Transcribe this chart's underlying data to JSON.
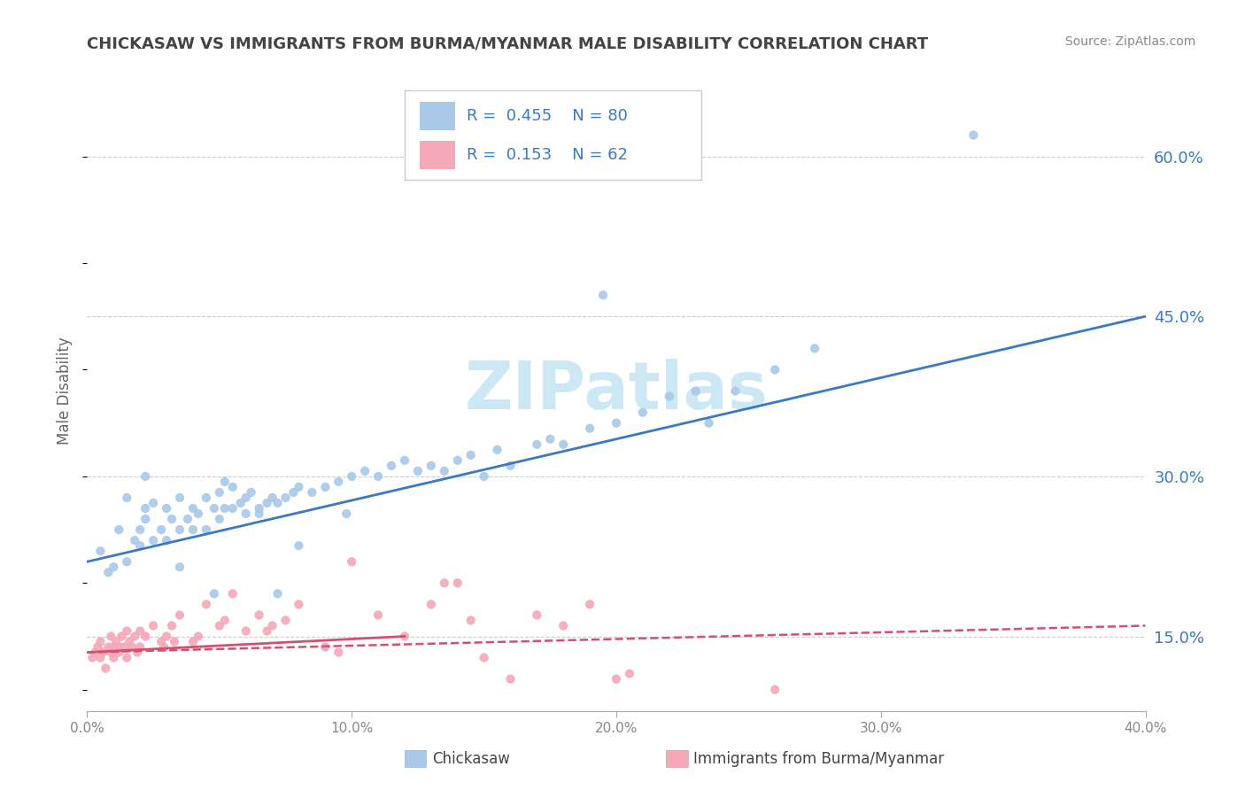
{
  "title": "CHICKASAW VS IMMIGRANTS FROM BURMA/MYANMAR MALE DISABILITY CORRELATION CHART",
  "source": "Source: ZipAtlas.com",
  "ylabel": "Male Disability",
  "xlabel_chickasaw": "Chickasaw",
  "xlabel_burma": "Immigrants from Burma/Myanmar",
  "xlim": [
    0.0,
    40.0
  ],
  "ylim": [
    8.0,
    68.0
  ],
  "right_yticks": [
    15.0,
    30.0,
    45.0,
    60.0
  ],
  "R_blue": 0.455,
  "N_blue": 80,
  "R_pink": 0.153,
  "N_pink": 62,
  "blue_color": "#a8c8e8",
  "pink_color": "#f4a8b8",
  "blue_line_color": "#3a7abf",
  "pink_line_color": "#d45070",
  "watermark": "ZIPatlas",
  "watermark_color": "#cde8f5",
  "background_color": "#ffffff",
  "grid_color": "#cccccc",
  "title_color": "#444444",
  "source_color": "#888888",
  "axis_label_color": "#666666",
  "tick_color": "#888888",
  "legend_label_color": "#3a7abf",
  "blue_scatter_x": [
    0.5,
    0.8,
    1.0,
    1.2,
    1.5,
    1.5,
    1.8,
    2.0,
    2.0,
    2.2,
    2.2,
    2.5,
    2.5,
    2.8,
    3.0,
    3.0,
    3.2,
    3.5,
    3.5,
    3.8,
    4.0,
    4.0,
    4.2,
    4.5,
    4.5,
    4.8,
    5.0,
    5.0,
    5.2,
    5.5,
    5.5,
    5.8,
    6.0,
    6.0,
    6.2,
    6.5,
    6.8,
    7.0,
    7.2,
    7.5,
    7.8,
    8.0,
    8.5,
    9.0,
    9.5,
    10.0,
    10.5,
    11.0,
    11.5,
    12.0,
    12.5,
    13.0,
    13.5,
    14.0,
    14.5,
    15.0,
    15.5,
    16.0,
    17.0,
    17.5,
    18.0,
    19.0,
    20.0,
    21.0,
    22.0,
    23.0,
    23.5,
    24.5,
    26.0,
    27.5,
    8.0,
    3.5,
    4.8,
    6.5,
    5.2,
    9.8,
    2.2,
    7.2,
    19.5,
    33.5
  ],
  "blue_scatter_y": [
    23.0,
    21.0,
    21.5,
    25.0,
    22.0,
    28.0,
    24.0,
    25.0,
    23.5,
    27.0,
    26.0,
    24.0,
    27.5,
    25.0,
    24.0,
    27.0,
    26.0,
    25.0,
    28.0,
    26.0,
    25.0,
    27.0,
    26.5,
    25.0,
    28.0,
    27.0,
    26.0,
    28.5,
    27.0,
    27.0,
    29.0,
    27.5,
    28.0,
    26.5,
    28.5,
    27.0,
    27.5,
    28.0,
    27.5,
    28.0,
    28.5,
    29.0,
    28.5,
    29.0,
    29.5,
    30.0,
    30.5,
    30.0,
    31.0,
    31.5,
    30.5,
    31.0,
    30.5,
    31.5,
    32.0,
    30.0,
    32.5,
    31.0,
    33.0,
    33.5,
    33.0,
    34.5,
    35.0,
    36.0,
    37.5,
    38.0,
    35.0,
    38.0,
    40.0,
    42.0,
    23.5,
    21.5,
    19.0,
    26.5,
    29.5,
    26.5,
    30.0,
    19.0,
    47.0,
    62.0
  ],
  "pink_scatter_x": [
    0.2,
    0.3,
    0.4,
    0.5,
    0.5,
    0.6,
    0.7,
    0.8,
    0.9,
    0.9,
    1.0,
    1.0,
    1.1,
    1.2,
    1.2,
    1.3,
    1.4,
    1.5,
    1.5,
    1.6,
    1.7,
    1.8,
    1.9,
    2.0,
    2.0,
    2.2,
    2.5,
    2.8,
    3.0,
    3.2,
    3.5,
    4.0,
    4.5,
    5.0,
    5.5,
    6.0,
    6.5,
    7.0,
    7.5,
    8.0,
    9.0,
    10.0,
    11.0,
    12.0,
    13.0,
    14.0,
    14.5,
    15.0,
    16.0,
    17.0,
    18.0,
    19.0,
    20.0,
    5.2,
    6.8,
    3.3,
    2.9,
    4.2,
    13.5,
    20.5,
    9.5,
    26.0
  ],
  "pink_scatter_y": [
    13.0,
    13.5,
    14.0,
    13.0,
    14.5,
    13.5,
    12.0,
    14.0,
    13.5,
    15.0,
    14.0,
    13.0,
    14.5,
    14.0,
    13.5,
    15.0,
    14.0,
    15.5,
    13.0,
    14.5,
    14.0,
    15.0,
    13.5,
    15.5,
    14.0,
    15.0,
    16.0,
    14.5,
    15.0,
    16.0,
    17.0,
    14.5,
    18.0,
    16.0,
    19.0,
    15.5,
    17.0,
    16.0,
    16.5,
    18.0,
    14.0,
    22.0,
    17.0,
    15.0,
    18.0,
    20.0,
    16.5,
    13.0,
    11.0,
    17.0,
    16.0,
    18.0,
    11.0,
    16.5,
    15.5,
    14.5,
    14.0,
    15.0,
    20.0,
    11.5,
    13.5,
    10.0
  ]
}
